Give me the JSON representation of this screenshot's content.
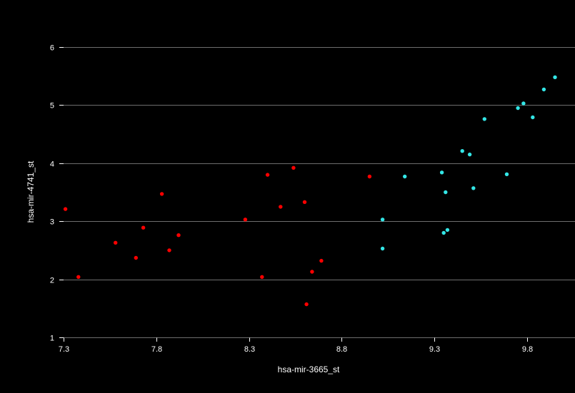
{
  "chart_data": {
    "type": "scatter",
    "xlabel": "hsa-mir-3665_st",
    "ylabel": "hsa-mir-4741_st",
    "xlim": [
      7.3,
      9.95
    ],
    "ylim": [
      1,
      6.5
    ],
    "x_ticks": [
      "7.3",
      "7.8",
      "8.3",
      "8.8",
      "9.3",
      "9.8"
    ],
    "y_ticks": [
      "1",
      "2",
      "3",
      "4",
      "5",
      "6"
    ],
    "x_tick_values": [
      7.3,
      7.8,
      8.3,
      8.8,
      9.3,
      9.8
    ],
    "y_tick_values": [
      1,
      2,
      3,
      4,
      5,
      6
    ],
    "grid": true,
    "background_color": "#000000",
    "series": [
      {
        "color": "#ff0000",
        "points": [
          [
            7.31,
            3.21
          ],
          [
            7.38,
            2.04
          ],
          [
            7.58,
            2.63
          ],
          [
            7.69,
            2.37
          ],
          [
            7.73,
            2.89
          ],
          [
            7.83,
            3.47
          ],
          [
            7.87,
            2.5
          ],
          [
            7.92,
            2.76
          ],
          [
            8.28,
            3.03
          ],
          [
            8.37,
            2.04
          ],
          [
            8.4,
            3.8
          ],
          [
            8.47,
            3.25
          ],
          [
            8.54,
            3.92
          ],
          [
            8.6,
            3.33
          ],
          [
            8.61,
            1.57
          ],
          [
            8.64,
            2.13
          ],
          [
            8.69,
            2.32
          ],
          [
            8.95,
            3.77
          ]
        ]
      },
      {
        "color": "#33e6e6",
        "points": [
          [
            9.02,
            3.03
          ],
          [
            9.02,
            2.53
          ],
          [
            9.14,
            3.77
          ],
          [
            9.34,
            3.84
          ],
          [
            9.35,
            2.8
          ],
          [
            9.36,
            3.5
          ],
          [
            9.37,
            2.85
          ],
          [
            9.45,
            4.21
          ],
          [
            9.49,
            4.15
          ],
          [
            9.51,
            3.57
          ],
          [
            9.57,
            4.76
          ],
          [
            9.69,
            3.81
          ],
          [
            9.75,
            4.95
          ],
          [
            9.78,
            5.03
          ],
          [
            9.83,
            4.79
          ],
          [
            9.89,
            5.27
          ],
          [
            9.95,
            5.48
          ]
        ]
      }
    ]
  }
}
